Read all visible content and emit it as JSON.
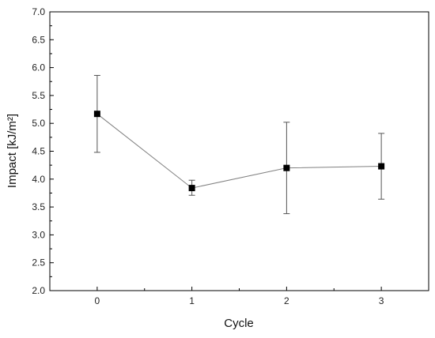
{
  "chart_data": {
    "type": "line",
    "xlabel": "Cycle",
    "ylabel": "Impact [kJ/m²]",
    "xlim": [
      -0.5,
      3.5
    ],
    "ylim": [
      2.0,
      7.0
    ],
    "x_ticks": [
      "0",
      "1",
      "2",
      "3"
    ],
    "y_ticks": [
      "2.0",
      "2.5",
      "3.0",
      "3.5",
      "4.0",
      "4.5",
      "5.0",
      "5.5",
      "6.0",
      "6.5",
      "7.0"
    ],
    "grid": false,
    "series": [
      {
        "x": [
          0,
          1,
          2,
          3
        ],
        "y": [
          5.17,
          3.84,
          4.2,
          4.23
        ],
        "error_low": [
          4.48,
          3.71,
          3.38,
          3.64
        ],
        "error_high": [
          5.86,
          3.98,
          5.02,
          4.82
        ],
        "marker": "square",
        "color": "#000000",
        "line_color": "#808080"
      }
    ]
  }
}
